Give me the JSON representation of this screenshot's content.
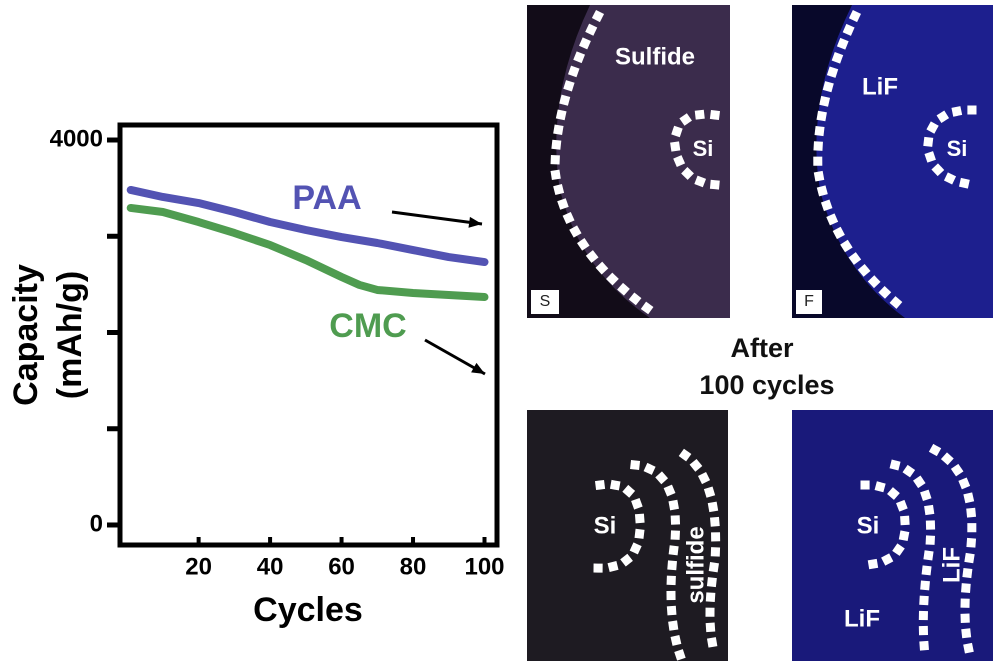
{
  "chart_data": {
    "type": "line",
    "ylabel": [
      "Capacity",
      "(mAh/g)"
    ],
    "xlabel": "Cycles",
    "xlim": [
      -2,
      103.5
    ],
    "ylim": [
      -208,
      4156
    ],
    "xticks": [
      20,
      40,
      60,
      80,
      100
    ],
    "yticks": [
      0,
      4000
    ],
    "yminor_ticks": [
      1000,
      2000,
      3000
    ],
    "series": [
      {
        "name": "PAA",
        "color": "#5353b3",
        "x": [
          1,
          10,
          20,
          30,
          40,
          50,
          60,
          70,
          80,
          90,
          100
        ],
        "values": [
          3481,
          3408,
          3345,
          3252,
          3148,
          3065,
          2992,
          2930,
          2857,
          2784,
          2732
        ]
      },
      {
        "name": "CMC",
        "color": "#4f9c50",
        "x": [
          1,
          10,
          20,
          30,
          40,
          50,
          60,
          65,
          70,
          80,
          90,
          100
        ],
        "values": [
          3294,
          3252,
          3148,
          3034,
          2909,
          2753,
          2577,
          2494,
          2442,
          2410,
          2390,
          2369
        ]
      }
    ]
  },
  "micrographs": [
    {
      "labels": [
        "Sulfide",
        "Si",
        "S"
      ]
    },
    {
      "labels": [
        "LiF",
        "Si",
        "F"
      ]
    },
    {
      "labels": [
        "Si",
        "sulfide"
      ]
    },
    {
      "labels": [
        "Si",
        "LiF",
        "LiF"
      ]
    }
  ],
  "caption": [
    "After",
    "100 cycles"
  ]
}
